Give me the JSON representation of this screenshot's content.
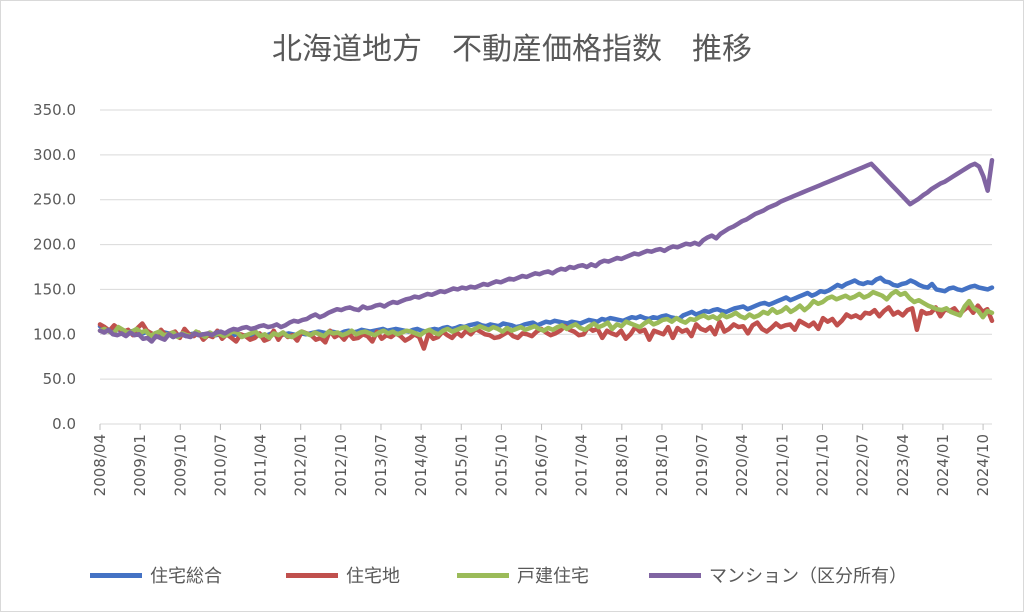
{
  "chart_data": {
    "type": "line",
    "title": "北海道地方　不動産価格指数　推移",
    "ylim": [
      0,
      350
    ],
    "yticks": [
      "0.0",
      "50.0",
      "100.0",
      "150.0",
      "200.0",
      "250.0",
      "300.0",
      "350.0"
    ],
    "xticks": [
      "2008/04",
      "2009/01",
      "2009/10",
      "2010/07",
      "2011/04",
      "2012/01",
      "2012/10",
      "2013/07",
      "2014/04",
      "2015/01",
      "2015/10",
      "2016/07",
      "2017/04",
      "2018/01",
      "2018/10",
      "2019/07",
      "2020/04",
      "2021/01",
      "2021/10",
      "2022/07",
      "2023/04",
      "2024/01",
      "2024/10"
    ],
    "x_start": "2008/04",
    "x_end": "2024/12",
    "grid": true,
    "legend": "bottom",
    "series": [
      {
        "name": "住宅総合",
        "color": "#4472c4",
        "values": [
          109,
          107,
          105,
          104,
          106,
          104,
          102,
          103,
          104,
          100,
          101,
          103,
          101,
          99,
          100,
          102,
          101,
          97,
          99,
          100,
          98,
          100,
          101,
          99,
          100,
          99,
          98,
          99,
          100,
          101,
          102,
          99,
          100,
          98,
          99,
          97,
          98,
          100,
          99,
          99,
          101,
          100,
          99,
          100,
          101,
          100,
          99,
          101,
          100,
          101,
          102,
          103,
          102,
          101,
          103,
          102,
          101,
          103,
          104,
          102,
          103,
          105,
          104,
          103,
          104,
          105,
          106,
          104,
          105,
          106,
          105,
          104,
          103,
          105,
          106,
          104,
          103,
          105,
          106,
          105,
          107,
          108,
          106,
          107,
          109,
          108,
          110,
          111,
          112,
          110,
          109,
          111,
          110,
          109,
          112,
          111,
          110,
          108,
          109,
          111,
          112,
          113,
          110,
          112,
          114,
          113,
          115,
          114,
          113,
          112,
          114,
          113,
          112,
          114,
          116,
          115,
          114,
          117,
          116,
          118,
          117,
          116,
          115,
          117,
          119,
          118,
          120,
          118,
          117,
          119,
          118,
          120,
          121,
          119,
          118,
          117,
          121,
          123,
          125,
          122,
          124,
          126,
          125,
          127,
          128,
          126,
          125,
          127,
          129,
          130,
          131,
          128,
          130,
          132,
          134,
          135,
          133,
          135,
          137,
          139,
          141,
          138,
          140,
          142,
          144,
          146,
          143,
          145,
          148,
          147,
          149,
          152,
          155,
          153,
          156,
          158,
          160,
          157,
          156,
          158,
          157,
          161,
          163,
          159,
          158,
          155,
          154,
          156,
          157,
          160,
          158,
          155,
          153,
          152,
          156,
          150,
          149,
          148,
          151,
          152,
          150,
          149,
          151,
          153,
          154,
          152,
          151,
          150,
          152
        ]
      },
      {
        "name": "住宅地",
        "color": "#c0504d",
        "values": [
          111,
          108,
          104,
          110,
          106,
          103,
          105,
          99,
          107,
          112,
          104,
          101,
          97,
          105,
          99,
          101,
          103,
          96,
          106,
          100,
          98,
          102,
          94,
          99,
          97,
          104,
          95,
          100,
          96,
          92,
          100,
          98,
          94,
          96,
          101,
          93,
          95,
          104,
          94,
          102,
          97,
          99,
          93,
          103,
          101,
          99,
          94,
          96,
          91,
          104,
          97,
          100,
          94,
          101,
          95,
          96,
          100,
          98,
          92,
          103,
          95,
          99,
          97,
          101,
          98,
          93,
          96,
          100,
          97,
          84,
          101,
          95,
          97,
          103,
          99,
          96,
          102,
          98,
          104,
          100,
          106,
          103,
          100,
          99,
          96,
          97,
          100,
          103,
          98,
          96,
          101,
          100,
          98,
          103,
          106,
          102,
          99,
          101,
          104,
          109,
          105,
          103,
          99,
          100,
          108,
          104,
          106,
          96,
          104,
          101,
          99,
          104,
          95,
          100,
          108,
          103,
          105,
          94,
          104,
          102,
          100,
          108,
          96,
          107,
          103,
          105,
          98,
          111,
          106,
          104,
          108,
          100,
          114,
          103,
          106,
          111,
          108,
          109,
          101,
          110,
          113,
          106,
          103,
          107,
          112,
          108,
          110,
          111,
          105,
          115,
          112,
          109,
          113,
          106,
          118,
          114,
          117,
          110,
          115,
          122,
          119,
          121,
          118,
          124,
          123,
          127,
          120,
          126,
          130,
          122,
          125,
          121,
          127,
          129,
          105,
          126,
          123,
          124,
          130,
          120,
          128,
          126,
          129,
          122,
          127,
          131,
          124,
          132,
          125,
          128,
          115
        ]
      },
      {
        "name": "戸建住宅",
        "color": "#9bbb59",
        "values": [
          104,
          106,
          103,
          101,
          108,
          105,
          102,
          103,
          106,
          102,
          104,
          98,
          101,
          103,
          99,
          100,
          102,
          97,
          101,
          99,
          98,
          103,
          100,
          97,
          102,
          99,
          101,
          98,
          100,
          103,
          102,
          97,
          99,
          101,
          103,
          98,
          100,
          96,
          101,
          99,
          102,
          98,
          97,
          100,
          103,
          101,
          99,
          102,
          100,
          98,
          103,
          101,
          102,
          99,
          101,
          104,
          100,
          102,
          103,
          101,
          99,
          102,
          104,
          101,
          103,
          100,
          102,
          104,
          103,
          101,
          99,
          103,
          105,
          102,
          100,
          104,
          106,
          103,
          105,
          107,
          108,
          104,
          106,
          109,
          107,
          105,
          108,
          106,
          103,
          107,
          104,
          106,
          108,
          105,
          107,
          109,
          106,
          104,
          107,
          105,
          108,
          110,
          106,
          109,
          111,
          107,
          105,
          109,
          112,
          108,
          110,
          113,
          106,
          111,
          109,
          114,
          112,
          110,
          108,
          112,
          115,
          111,
          113,
          116,
          117,
          114,
          118,
          115,
          113,
          117,
          116,
          119,
          121,
          118,
          120,
          117,
          122,
          119,
          121,
          124,
          120,
          118,
          122,
          119,
          121,
          125,
          123,
          128,
          124,
          126,
          130,
          125,
          128,
          132,
          127,
          131,
          137,
          134,
          136,
          140,
          142,
          139,
          141,
          143,
          140,
          142,
          145,
          141,
          143,
          147,
          145,
          143,
          139,
          145,
          148,
          144,
          146,
          140,
          136,
          138,
          135,
          132,
          130,
          128,
          127,
          129,
          125,
          123,
          121,
          131,
          137,
          129,
          126,
          119,
          126,
          124
        ]
      },
      {
        "name": "マンション（区分所有）",
        "color": "#8064a2",
        "values": [
          104,
          102,
          105,
          100,
          99,
          101,
          98,
          102,
          99,
          100,
          95,
          96,
          92,
          98,
          96,
          94,
          100,
          97,
          99,
          100,
          98,
          97,
          101,
          99,
          100,
          101,
          99,
          102,
          103,
          101,
          104,
          106,
          105,
          107,
          108,
          106,
          107,
          109,
          110,
          108,
          109,
          111,
          108,
          110,
          113,
          115,
          114,
          116,
          117,
          120,
          122,
          119,
          121,
          124,
          126,
          128,
          127,
          129,
          130,
          128,
          127,
          131,
          129,
          130,
          132,
          133,
          131,
          134,
          136,
          135,
          137,
          139,
          140,
          142,
          141,
          143,
          145,
          144,
          146,
          148,
          147,
          149,
          151,
          150,
          152,
          151,
          153,
          152,
          154,
          156,
          155,
          157,
          159,
          158,
          160,
          162,
          161,
          163,
          165,
          164,
          166,
          168,
          167,
          169,
          170,
          168,
          171,
          173,
          172,
          175,
          174,
          176,
          177,
          175,
          178,
          176,
          180,
          182,
          181,
          183,
          185,
          184,
          186,
          188,
          190,
          189,
          191,
          193,
          192,
          194,
          195,
          193,
          196,
          198,
          197,
          199,
          201,
          200,
          202,
          200,
          205,
          208,
          210,
          207,
          212,
          215,
          218,
          220,
          223,
          226,
          228,
          231,
          234,
          236,
          238,
          241,
          243,
          245,
          248,
          250,
          252,
          254,
          256,
          258,
          260,
          262,
          264,
          266,
          268,
          270,
          272,
          274,
          276,
          278,
          280,
          282,
          284,
          286,
          288,
          290,
          285,
          280,
          275,
          270,
          265,
          260,
          255,
          250,
          245,
          248,
          251,
          255,
          258,
          262,
          265,
          268,
          270,
          273,
          276,
          279,
          282,
          285,
          288,
          290,
          287,
          276,
          260,
          294
        ]
      }
    ]
  }
}
